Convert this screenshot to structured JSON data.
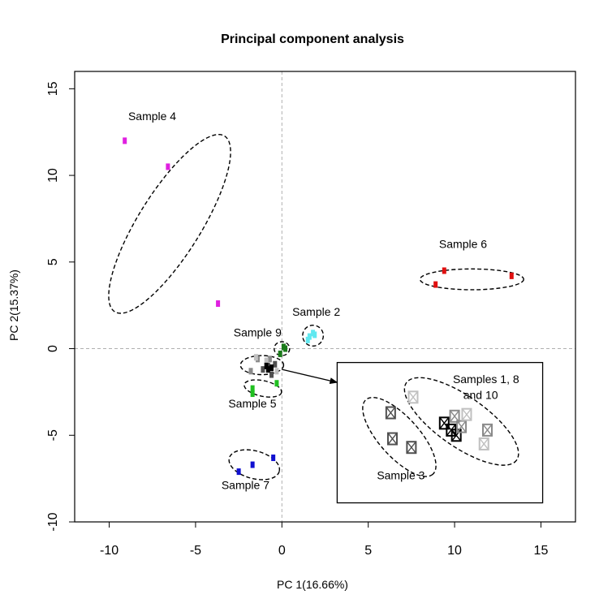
{
  "chart_data": {
    "type": "scatter",
    "title": "Principal component analysis",
    "xlabel": "PC 1(16.66%)",
    "ylabel": "PC 2(15.37%)",
    "xlim": [
      -12,
      17
    ],
    "ylim": [
      -10,
      16
    ],
    "xticks": [
      -10,
      -5,
      0,
      5,
      10,
      15
    ],
    "yticks": [
      -10,
      -5,
      0,
      5,
      10,
      15
    ],
    "reference_lines": {
      "x": 0,
      "y": 0
    },
    "colors": {
      "sample4": "#e020e0",
      "sample6": "#e01010",
      "sample2": "#60e8f0",
      "sample9": "#1a7a1a",
      "sample5": "#20c020",
      "sample7": "#1010d0",
      "gray_dark": "#505050",
      "gray_mid": "#8a8a8a",
      "gray_light": "#c0c0c0",
      "black": "#000000"
    },
    "series": [
      {
        "color": "#e020e0",
        "points": [
          [
            -9.1,
            12.0
          ],
          [
            -6.6,
            10.5
          ],
          [
            -3.7,
            2.6
          ]
        ]
      },
      {
        "color": "#e01010",
        "points": [
          [
            8.9,
            3.7
          ],
          [
            9.4,
            4.5
          ],
          [
            13.3,
            4.2
          ]
        ]
      },
      {
        "color": "#60e8f0",
        "points": [
          [
            1.6,
            0.7
          ],
          [
            1.8,
            0.9
          ],
          [
            1.9,
            0.8
          ],
          [
            1.5,
            0.5
          ]
        ]
      },
      {
        "color": "#1a7a1a",
        "points": [
          [
            -0.1,
            -0.3
          ],
          [
            0.1,
            0.1
          ],
          [
            0.2,
            0.0
          ]
        ]
      },
      {
        "color": "#20c020",
        "points": [
          [
            -1.7,
            -2.3
          ],
          [
            -1.7,
            -2.6
          ],
          [
            -0.3,
            -2.0
          ]
        ]
      },
      {
        "color": "#1010d0",
        "points": [
          [
            -2.5,
            -7.1
          ],
          [
            -1.7,
            -6.7
          ],
          [
            -0.5,
            -6.3
          ]
        ]
      },
      {
        "color": "#505050",
        "points": [
          [
            -1.1,
            -1.2
          ],
          [
            -0.8,
            -1.0
          ],
          [
            -0.6,
            -1.5
          ],
          [
            -0.4,
            -0.9
          ]
        ]
      },
      {
        "color": "#8a8a8a",
        "points": [
          [
            -1.4,
            -0.6
          ],
          [
            -1.8,
            -1.3
          ],
          [
            -0.7,
            -0.6
          ]
        ]
      },
      {
        "color": "#c0c0c0",
        "points": [
          [
            -1.5,
            -0.5
          ],
          [
            -0.9,
            -0.7
          ],
          [
            -0.3,
            -1.3
          ]
        ]
      },
      {
        "color": "#000000",
        "points": [
          [
            -0.9,
            -1.0
          ],
          [
            -0.8,
            -1.2
          ],
          [
            -0.6,
            -1.1
          ]
        ]
      }
    ],
    "ellipses": [
      {
        "cx": -6.5,
        "cy": 7.2,
        "rx": 6.0,
        "ry": 1.8,
        "angle": -58
      },
      {
        "cx": 11.0,
        "cy": 4.0,
        "rx": 3.0,
        "ry": 0.6,
        "angle": 0
      },
      {
        "cx": 1.8,
        "cy": 0.75,
        "rx": 0.6,
        "ry": 0.6,
        "angle": 0
      },
      {
        "cx": 0.0,
        "cy": 0.0,
        "rx": 0.45,
        "ry": 0.4,
        "angle": 0
      },
      {
        "cx": -1.15,
        "cy": -0.95,
        "rx": 1.25,
        "ry": 0.55,
        "angle": 0
      },
      {
        "cx": -1.1,
        "cy": -2.3,
        "rx": 1.1,
        "ry": 0.45,
        "angle": 12
      },
      {
        "cx": -1.6,
        "cy": -6.7,
        "rx": 1.5,
        "ry": 0.8,
        "angle": 15
      }
    ],
    "annotations": [
      {
        "text": "Sample 4",
        "x": -8.9,
        "y": 13.2
      },
      {
        "text": "Sample 6",
        "x": 9.1,
        "y": 5.8
      },
      {
        "text": "Sample 2",
        "x": 0.6,
        "y": 1.9
      },
      {
        "text": "Sample 9",
        "x": -2.8,
        "y": 0.7
      },
      {
        "text": "Sample 5",
        "x": -3.1,
        "y": -3.4
      },
      {
        "text": "Sample 7",
        "x": -3.5,
        "y": -8.1
      }
    ],
    "inset": {
      "arrow_from": [
        0.0,
        -1.2
      ],
      "arrow_to": [
        3.2,
        -1.95
      ],
      "box": {
        "xmin": 3.2,
        "xmax": 15.1,
        "ymin": -8.9,
        "ymax": -0.8
      },
      "label_sample3": "Sample 3",
      "label_samples_1": "Samples 1, 8",
      "label_samples_2": "and 10",
      "ellipses": [
        {
          "cx": 6.8,
          "cy": -5.1,
          "rx": 2.9,
          "ry": 1.15,
          "angle": 48
        },
        {
          "cx": 10.4,
          "cy": -4.2,
          "rx": 3.9,
          "ry": 1.45,
          "angle": 35
        }
      ],
      "markers": [
        {
          "x": 6.3,
          "y": -3.7,
          "color": "#505050"
        },
        {
          "x": 6.4,
          "y": -5.2,
          "color": "#505050"
        },
        {
          "x": 7.5,
          "y": -5.7,
          "color": "#505050"
        },
        {
          "x": 7.6,
          "y": -2.8,
          "color": "#c0c0c0"
        },
        {
          "x": 9.4,
          "y": -4.3,
          "color": "#000000"
        },
        {
          "x": 9.8,
          "y": -4.7,
          "color": "#000000"
        },
        {
          "x": 10.1,
          "y": -5.0,
          "color": "#000000"
        },
        {
          "x": 10.0,
          "y": -3.9,
          "color": "#8a8a8a"
        },
        {
          "x": 10.4,
          "y": -4.5,
          "color": "#8a8a8a"
        },
        {
          "x": 11.9,
          "y": -4.7,
          "color": "#8a8a8a"
        },
        {
          "x": 10.7,
          "y": -3.8,
          "color": "#c0c0c0"
        },
        {
          "x": 11.7,
          "y": -5.5,
          "color": "#c0c0c0"
        }
      ]
    }
  }
}
